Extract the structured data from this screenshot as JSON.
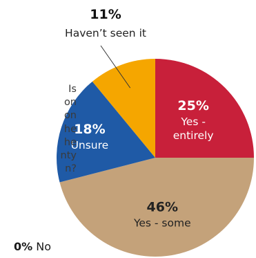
{
  "chart_data": {
    "type": "pie",
    "title": "",
    "start_angle_deg": 0,
    "direction": "clockwise",
    "slices": [
      {
        "label": "Yes - entirely",
        "value": 25,
        "pct_label": "25%",
        "label_lines": [
          "Yes -",
          "entirely"
        ],
        "color": "#c8203a",
        "label_color": "#ffffff",
        "pct_color": "#ffffff"
      },
      {
        "label": "Yes - some",
        "value": 46,
        "pct_label": "46%",
        "label_lines": [
          "Yes - some"
        ],
        "color": "#c4a27a",
        "label_color": "#222222",
        "pct_color": "#222222"
      },
      {
        "label": "Unsure",
        "value": 18,
        "pct_label": "18%",
        "label_lines": [
          "Unsure"
        ],
        "color": "#1f5aa6",
        "label_color": "#ffffff",
        "pct_color": "#ffffff"
      },
      {
        "label": "Haven’t seen it",
        "value": 11,
        "pct_label": "11%",
        "label_lines": [
          "Haven’t seen it"
        ],
        "color": "#f5a600",
        "label_color": "#222222",
        "pct_color": "#111111",
        "external": true
      },
      {
        "label": "No",
        "value": 0,
        "pct_label": "0%",
        "label_lines": [
          "No"
        ],
        "color": "#888888",
        "external": true
      }
    ]
  },
  "side_text": "Is\non\non\nhe\nhe\nnty\nn?",
  "no_slice": {
    "pct": "0%",
    "label": "No"
  }
}
